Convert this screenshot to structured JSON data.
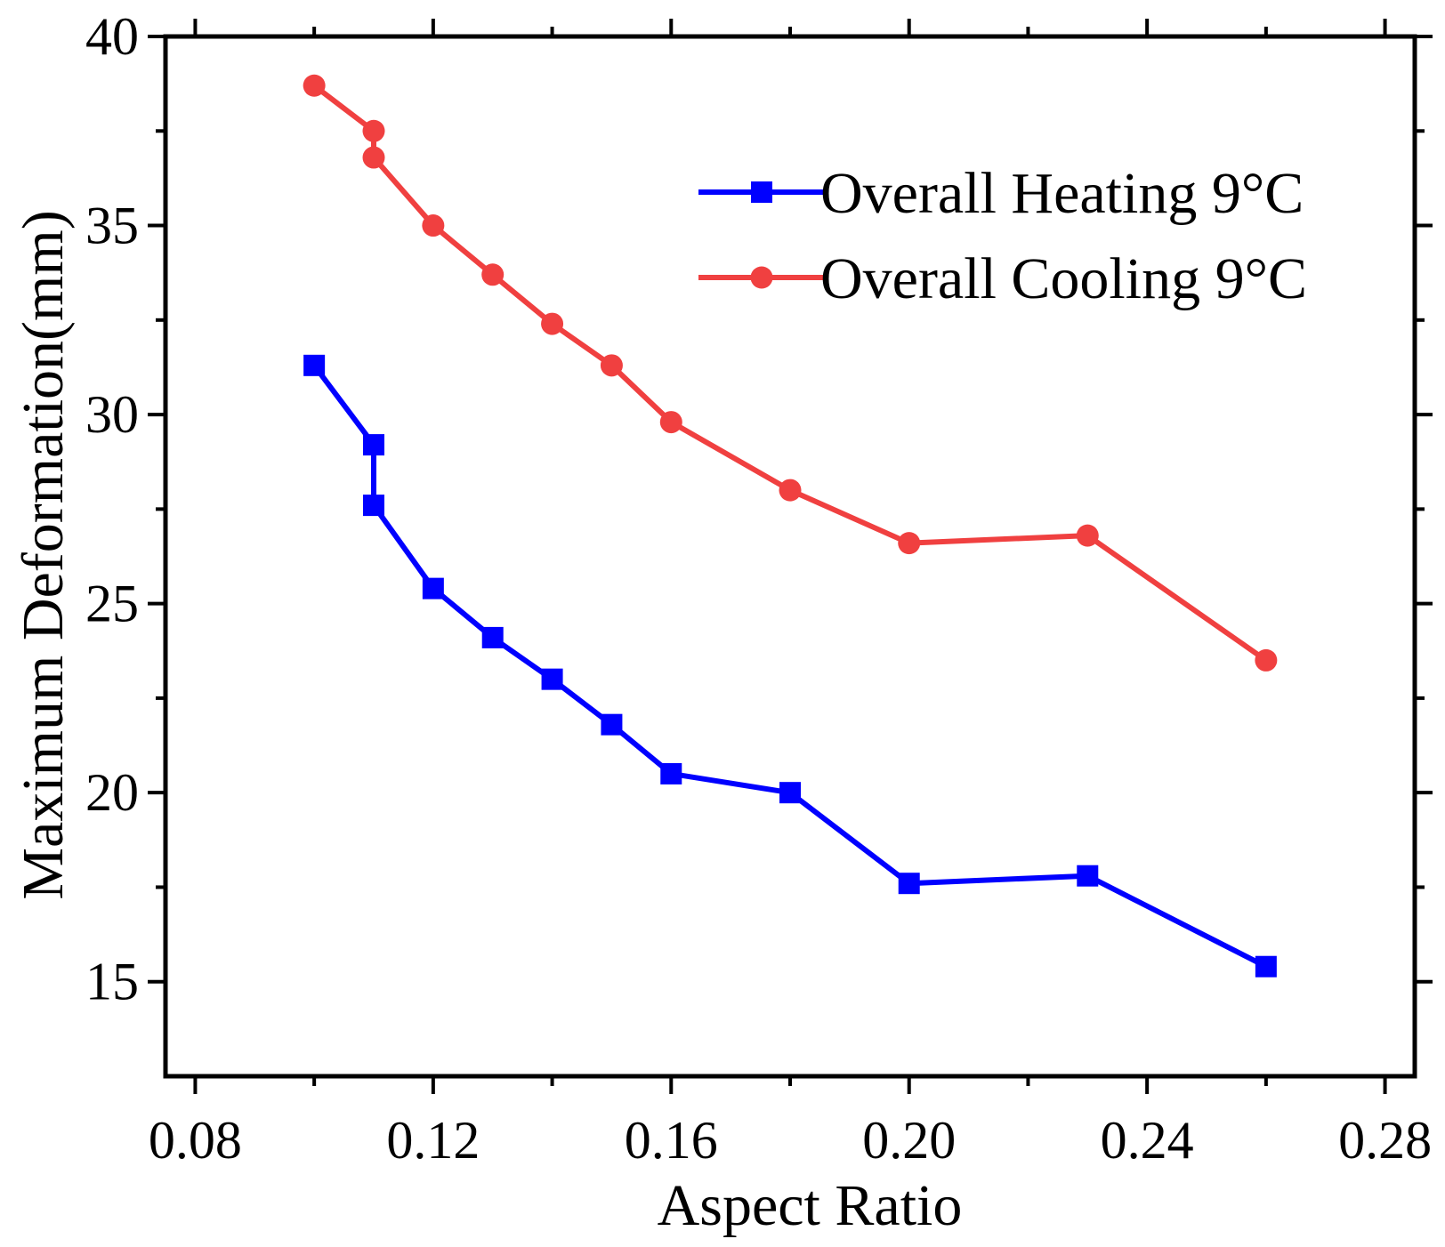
{
  "chart_data": {
    "type": "line",
    "title": "",
    "xlabel": "Aspect Ratio",
    "ylabel": "Maximum Deformation(mm)",
    "xlim": [
      0.075,
      0.285
    ],
    "ylim": [
      12.5,
      40
    ],
    "xticks": [
      0.08,
      0.12,
      0.16,
      0.2,
      0.24,
      0.28
    ],
    "xtick_labels": [
      "0.08",
      "0.12",
      "0.16",
      "0.20",
      "0.24",
      "0.28"
    ],
    "yticks": [
      15,
      20,
      25,
      30,
      35,
      40
    ],
    "ytick_labels": [
      "15",
      "20",
      "25",
      "30",
      "35",
      "40"
    ],
    "legend_position": "top-right",
    "grid": false,
    "series": [
      {
        "name": "Overall Heating 9°C",
        "color": "#0000ff",
        "marker": "square",
        "x": [
          0.1,
          0.11,
          0.11,
          0.12,
          0.13,
          0.14,
          0.15,
          0.16,
          0.18,
          0.2,
          0.23,
          0.26
        ],
        "y": [
          31.3,
          29.2,
          27.6,
          25.4,
          24.1,
          23.0,
          21.8,
          20.5,
          20.0,
          17.6,
          17.8,
          15.4
        ]
      },
      {
        "name": "Overall Cooling 9°C",
        "color": "#f04040",
        "marker": "circle",
        "x": [
          0.1,
          0.11,
          0.11,
          0.12,
          0.13,
          0.14,
          0.15,
          0.16,
          0.18,
          0.2,
          0.23,
          0.26
        ],
        "y": [
          38.7,
          37.5,
          36.8,
          35.0,
          33.7,
          32.4,
          31.3,
          29.8,
          28.0,
          26.6,
          26.8,
          23.5
        ]
      }
    ]
  }
}
